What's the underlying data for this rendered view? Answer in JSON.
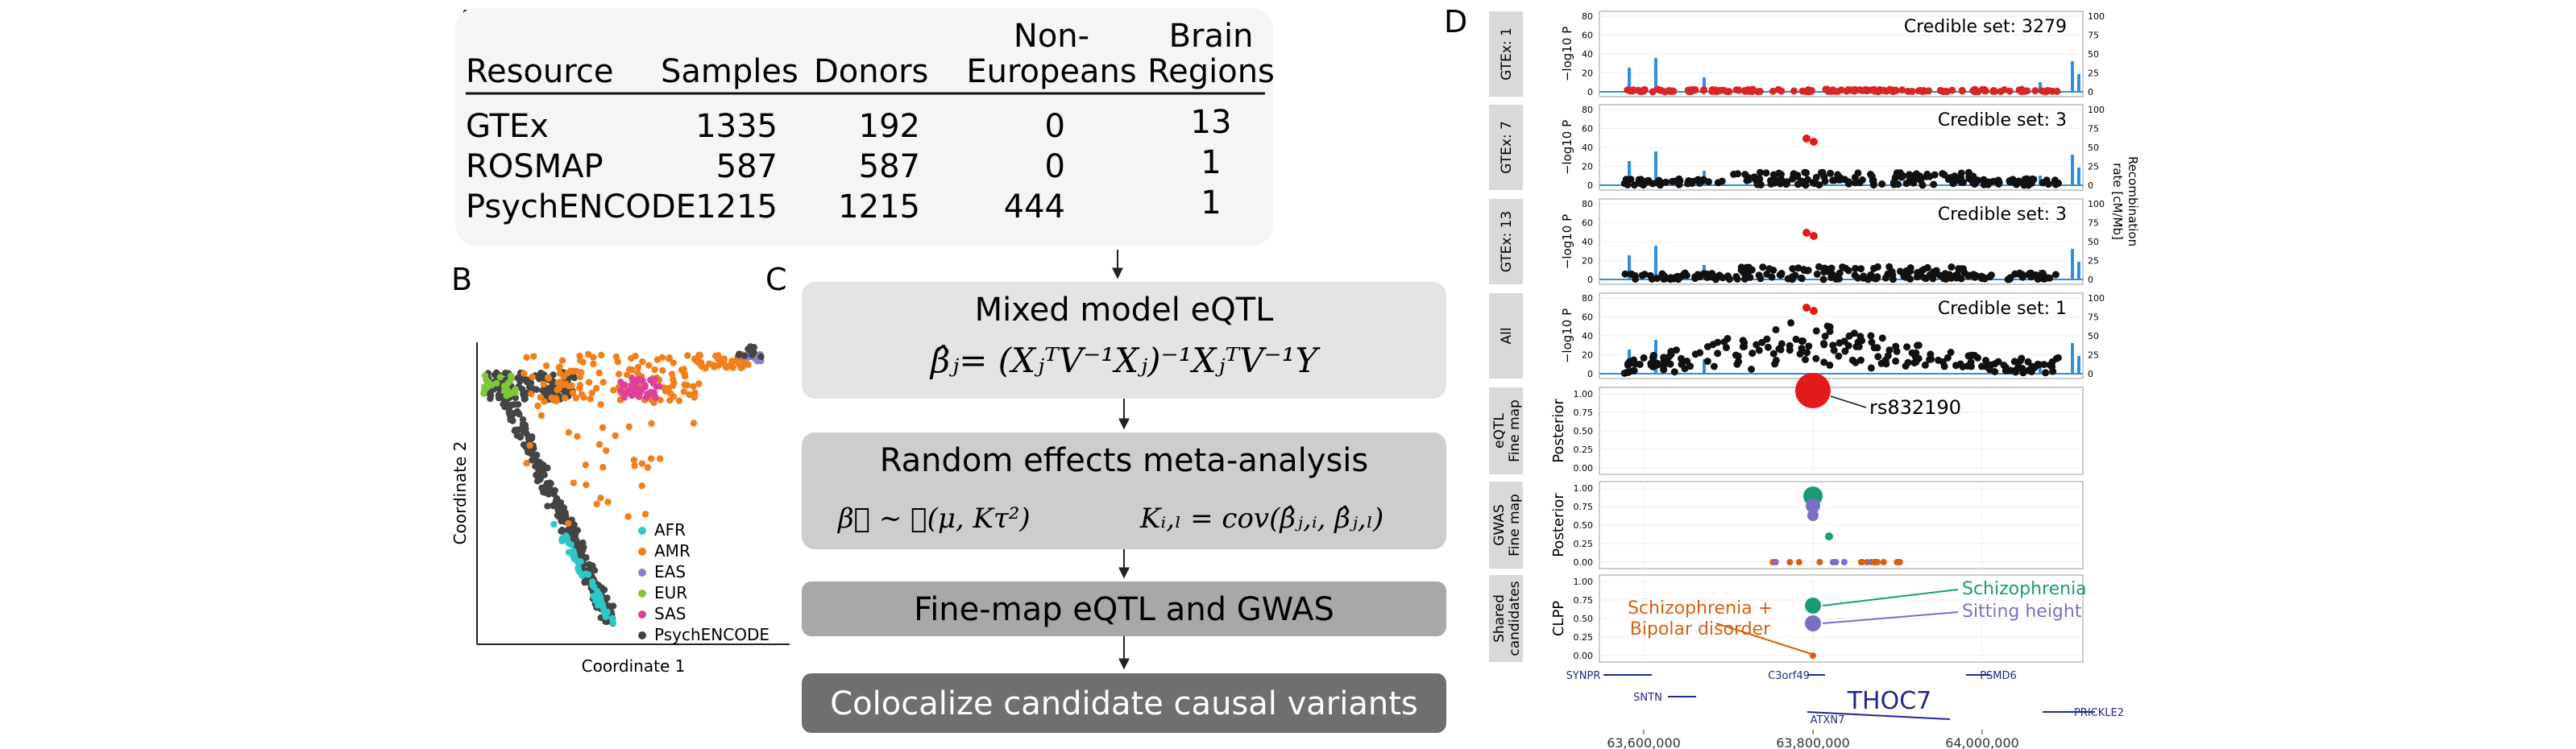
{
  "panel_labels": {
    "a": "A",
    "b": "B",
    "c": "C",
    "d": "D"
  },
  "table": {
    "headers": {
      "resource": "Resource",
      "samples": "Samples",
      "donors": "Donors",
      "noneuro_line1": "Non-",
      "noneuro_line2": "Europeans",
      "brain_line1": "Brain",
      "brain_line2": "Regions"
    },
    "rows": [
      {
        "resource": "GTEx",
        "samples": "1335",
        "donors": "192",
        "noneuro": "0",
        "regions": "13"
      },
      {
        "resource": "ROSMAP",
        "samples": "587",
        "donors": "587",
        "noneuro": "0",
        "regions": "1"
      },
      {
        "resource": "PsychENCODE",
        "samples": "1215",
        "donors": "1215",
        "noneuro": "444",
        "regions": "1"
      }
    ]
  },
  "pca": {
    "xlabel": "Coordinate 1",
    "ylabel": "Coordinate 2",
    "legend": [
      {
        "label": "AFR",
        "color": "#2cc7c7"
      },
      {
        "label": "AMR",
        "color": "#f07f1c"
      },
      {
        "label": "EAS",
        "color": "#8b7fc7"
      },
      {
        "label": "EUR",
        "color": "#7fc738"
      },
      {
        "label": "SAS",
        "color": "#e0409a"
      },
      {
        "label": "PsychENCODE",
        "color": "#444444"
      }
    ]
  },
  "flow": {
    "step1_title": "Mixed model eQTL",
    "step1_formula": "β̂ⱼ= (XⱼᵀV⁻¹Xⱼ)⁻¹XⱼᵀV⁻¹Y",
    "step2_title": "Random effects meta-analysis",
    "step2_formula_left": "β⃗ ∼ 𝒩(μ, Kτ²)",
    "step2_formula_right": "Kᵢ,ₗ = cov(β̂ⱼ,ᵢ, β̂ⱼ,ₗ)",
    "step3_title": "Fine-map eQTL and GWAS",
    "step4_title": "Colocalize candidate causal variants"
  },
  "locus": {
    "tracks": [
      {
        "label": "GTEx: 1",
        "credible": "Credible set: 3279"
      },
      {
        "label": "GTEx: 7",
        "credible": "Credible set: 3"
      },
      {
        "label": "GTEx: 13",
        "credible": "Credible set: 3"
      },
      {
        "label": "All",
        "credible": "Credible set: 1"
      }
    ],
    "logp_label": "−log10 P",
    "recomb_label_1": "Recombination",
    "recomb_label_2": "rate [cM/Mb]",
    "logp_ticks": [
      "80",
      "60",
      "40",
      "20",
      "0"
    ],
    "recomb_ticks": [
      "100",
      "75",
      "50",
      "25",
      "0"
    ],
    "posterior_ticks": [
      "1.00",
      "0.75",
      "0.50",
      "0.25",
      "0.00"
    ],
    "eqtl_fine_map": {
      "label1": "eQTL",
      "label2": "Fine map",
      "ylabel": "Posterior",
      "snp": "rs832190"
    },
    "gwas_fine_map": {
      "label1": "GWAS",
      "label2": "Fine map",
      "ylabel": "Posterior"
    },
    "shared": {
      "label1": "Shared",
      "label2": "candidates",
      "ylabel": "CLPP",
      "scz": "Schizophrenia",
      "height": "Sitting height",
      "scz_bip_1": "Schizophrenia +",
      "scz_bip_2": "Bipolar disorder",
      "scz_color": "#1a9b76",
      "height_color": "#7b6fc4",
      "bip_color": "#d95f0e"
    },
    "genes": [
      "SYNPR",
      "SNTN",
      "C3orf49",
      "THOC7",
      "ATXN7",
      "PSMD6",
      "PRICKLE2"
    ],
    "x_ticks": [
      "63,600,000",
      "63,800,000",
      "64,000,000"
    ]
  }
}
